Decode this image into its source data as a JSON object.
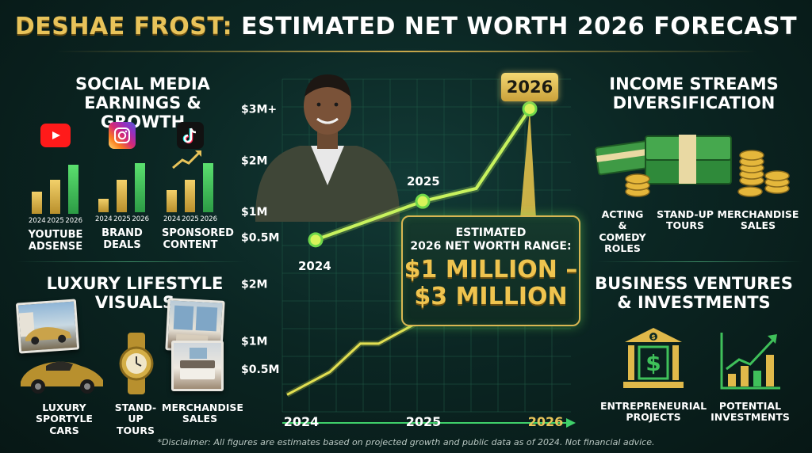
{
  "title": {
    "part1": "DESHAE FROST:",
    "part2": "ESTIMATED NET WORTH 2026 FORECAST"
  },
  "social_media": {
    "heading_line1": "SOCIAL MEDIA",
    "heading_line2": "EARNINGS & GROWTH",
    "platforms": [
      {
        "icon": "youtube-icon",
        "label_line1": "YOUTUBE",
        "label_line2": "ADSENSE",
        "growth": [
          0.45,
          0.7,
          1.0
        ],
        "color": "#ff0000"
      },
      {
        "icon": "instagram-icon",
        "label_line1": "BRAND",
        "label_line2": "DEALS",
        "growth": [
          0.28,
          0.66,
          1.0
        ],
        "color": "#d6249f"
      },
      {
        "icon": "tiktok-icon",
        "label_line1": "SPONSORED",
        "label_line2": "CONTENT",
        "growth": [
          0.45,
          0.66,
          1.0
        ],
        "color": "#111111"
      }
    ],
    "years": [
      "2024",
      "2025",
      "2026"
    ]
  },
  "luxury": {
    "heading_line1": "LUXURY LIFESTYLE",
    "heading_line2": "VISUALS",
    "items": [
      {
        "label_line1": "LUXURY",
        "label_line2": "SPORTYLE CARS"
      },
      {
        "label_line1": "STAND-UP",
        "label_line2": "TOURS"
      },
      {
        "label_line1": "MERCHANDISE",
        "label_line2": "SALES"
      }
    ]
  },
  "income": {
    "heading_line1": "INCOME STREAMS",
    "heading_line2": "DIVERSIFICATION",
    "items": [
      {
        "line1": "ACTING &",
        "line2": "COMEDY",
        "line3": "ROLES"
      },
      {
        "line1": "STAND-UP",
        "line2": "TOURS",
        "line3": ""
      },
      {
        "line1": "MERCHANDISE",
        "line2": "SALES",
        "line3": ""
      }
    ]
  },
  "business": {
    "heading_line1": "BUSINESS VENTURES",
    "heading_line2": "& INVESTMENTS",
    "items": [
      {
        "icon": "bank-dollar-icon",
        "line1": "ENTREPRENEURIAL",
        "line2": "PROJECTS"
      },
      {
        "icon": "growth-chart-icon",
        "line1": "POTENTIAL",
        "line2": "INVESTMENTS"
      }
    ]
  },
  "callout": {
    "line1": "ESTIMATED",
    "line2": "2026 NET WORTH RANGE:",
    "line3": "$1 MILLION –",
    "line4": "$3 MILLION"
  },
  "badge": "2026",
  "disclaimer": "*Disclaimer: All figures are estimates based on projected growth and public data as of 2024. Not financial advice.",
  "colors": {
    "gold": "#e8c35a",
    "line_green": "#b9f25a",
    "bar_green": "#3fc05a",
    "bar_gold": "#d9b44a"
  },
  "chart_data": [
    {
      "type": "line",
      "title": "",
      "xlabel": "",
      "ylabel": "",
      "y_tick_labels": [
        "$0.5M",
        "$1M",
        "$2M",
        "$3M+"
      ],
      "y_tick_values": [
        0.5,
        1,
        2,
        3
      ],
      "ylim": [
        0,
        3.3
      ],
      "points": [
        {
          "label": "2024",
          "x": "2024",
          "y": 0.45
        },
        {
          "label": "2025",
          "x": "2025",
          "y": 1.2
        },
        {
          "label": "",
          "x": "2025.5",
          "y": 1.45
        },
        {
          "label": "2026",
          "x": "2026",
          "y": 3.0
        }
      ],
      "grid": true,
      "unit": "$M"
    },
    {
      "type": "line",
      "title": "",
      "x_tick_labels": [
        "2024",
        "2025",
        "2026"
      ],
      "y_tick_labels": [
        "$0.5M",
        "$1M",
        "$2M"
      ],
      "y_tick_values": [
        0.5,
        1,
        2
      ],
      "ylim": [
        0,
        2.4
      ],
      "series": [
        {
          "x": [
            "2024",
            "2024.35",
            "2024.6",
            "2024.75",
            "2025.05",
            "2025.4",
            "2025.7",
            "2026"
          ],
          "values": [
            0.05,
            0.45,
            0.95,
            0.95,
            1.3,
            1.55,
            1.65,
            2.35
          ]
        }
      ],
      "grid": true
    }
  ]
}
